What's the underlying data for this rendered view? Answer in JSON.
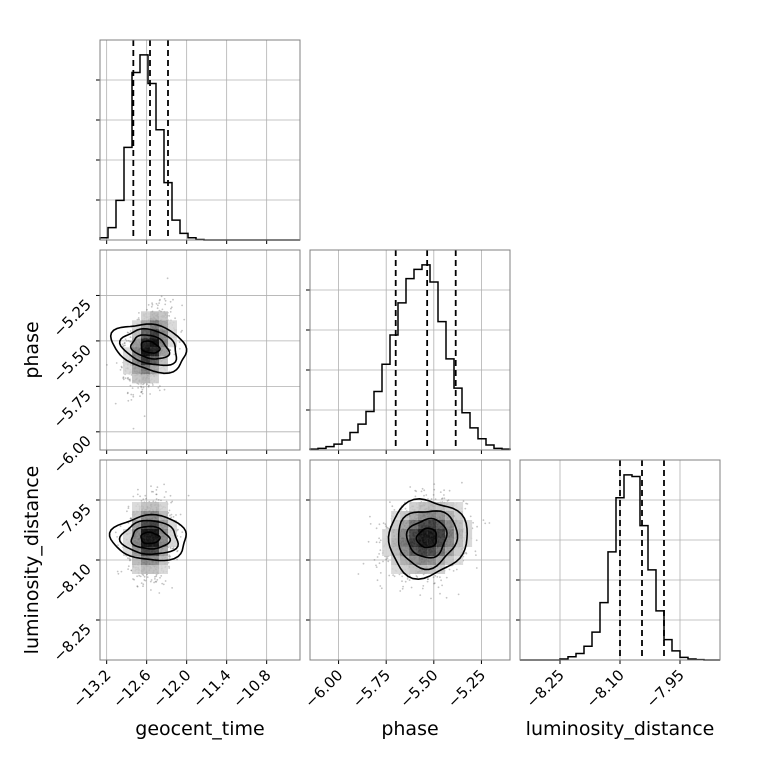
{
  "chart_data": [
    {
      "type": "histogram",
      "parameter": "geocent_time",
      "grid": true,
      "xlim": [
        -13.3,
        -10.3
      ],
      "bin_edges": [
        -13.3,
        -13.18,
        -13.06,
        -12.94,
        -12.82,
        -12.7,
        -12.58,
        -12.46,
        -12.34,
        -12.22,
        -12.1,
        -11.98,
        -11.86,
        -11.74,
        -11.62,
        -11.5,
        -11.38,
        -11.26,
        -11.14,
        -11.02,
        -10.9,
        -10.78,
        -10.66,
        -10.54,
        -10.42,
        -10.3
      ],
      "counts": [
        5,
        28,
        90,
        210,
        380,
        420,
        355,
        250,
        130,
        45,
        15,
        5,
        1,
        0,
        0,
        0,
        0,
        0,
        0,
        0,
        0,
        0,
        0,
        0,
        0
      ],
      "quantile_lines": [
        -12.8,
        -12.55,
        -12.28
      ]
    },
    {
      "type": "histogram",
      "parameter": "phase",
      "grid": true,
      "xlim": [
        -6.15,
        -5.1
      ],
      "bin_edges": [
        -6.15,
        -6.108,
        -6.066,
        -6.024,
        -5.982,
        -5.94,
        -5.898,
        -5.856,
        -5.814,
        -5.772,
        -5.73,
        -5.688,
        -5.646,
        -5.604,
        -5.562,
        -5.52,
        -5.478,
        -5.436,
        -5.394,
        -5.352,
        -5.31,
        -5.268,
        -5.226,
        -5.184,
        -5.142,
        -5.1
      ],
      "counts": [
        2,
        4,
        8,
        14,
        24,
        42,
        62,
        92,
        140,
        205,
        275,
        352,
        410,
        432,
        443,
        402,
        307,
        218,
        148,
        89,
        53,
        27,
        12,
        4,
        2
      ],
      "quantile_lines": [
        -5.7,
        -5.535,
        -5.385
      ]
    },
    {
      "type": "histogram",
      "parameter": "luminosity_distance",
      "grid": true,
      "xlim": [
        -8.35,
        -7.85
      ],
      "bin_edges": [
        -8.35,
        -8.33,
        -8.31,
        -8.29,
        -8.27,
        -8.25,
        -8.23,
        -8.21,
        -8.19,
        -8.17,
        -8.15,
        -8.13,
        -8.11,
        -8.09,
        -8.07,
        -8.05,
        -8.03,
        -8.01,
        -7.99,
        -7.97,
        -7.95,
        -7.93,
        -7.91,
        -7.89,
        -7.87,
        -7.85
      ],
      "counts": [
        0,
        0,
        0,
        0,
        0,
        3,
        10,
        20,
        42,
        85,
        175,
        330,
        495,
        565,
        560,
        410,
        275,
        150,
        62,
        28,
        8,
        3,
        1,
        0,
        0
      ],
      "quantile_lines": [
        -8.1,
        -8.045,
        -7.99
      ]
    },
    {
      "type": "scatter_density",
      "x_parameter": "geocent_time",
      "y_parameter": "phase",
      "xlim": [
        -13.3,
        -10.3
      ],
      "ylim": [
        -6.1,
        -5.0
      ],
      "center": [
        -12.55,
        -5.535
      ],
      "spread": [
        0.16,
        0.1
      ],
      "correlation": 0.35,
      "contour_levels_sigma": [
        0.5,
        1.0,
        1.5,
        2.0
      ]
    },
    {
      "type": "scatter_density",
      "x_parameter": "geocent_time",
      "y_parameter": "luminosity_distance",
      "xlim": [
        -13.3,
        -10.3
      ],
      "ylim": [
        -8.35,
        -7.85
      ],
      "center": [
        -12.55,
        -8.045
      ],
      "spread": [
        0.16,
        0.045
      ],
      "correlation": 0.05,
      "contour_levels_sigma": [
        0.5,
        1.0,
        1.5,
        2.0
      ]
    },
    {
      "type": "scatter_density",
      "x_parameter": "phase",
      "y_parameter": "luminosity_distance",
      "xlim": [
        -6.15,
        -5.1
      ],
      "ylim": [
        -8.35,
        -7.85
      ],
      "center": [
        -5.535,
        -8.045
      ],
      "spread": [
        0.1,
        0.045
      ],
      "correlation": 0.15,
      "contour_levels_sigma": [
        0.5,
        1.0,
        1.5,
        2.0
      ]
    }
  ],
  "axes": {
    "geocent_time": {
      "label": "geocent_time",
      "ticks": [
        -13.2,
        -12.6,
        -12.0,
        -11.4,
        -10.8
      ],
      "tick_labels": [
        "−13.2",
        "−12.6",
        "−12.0",
        "−11.4",
        "−10.8"
      ]
    },
    "phase": {
      "label": "phase",
      "ticks": [
        -6.0,
        -5.75,
        -5.5,
        -5.25
      ],
      "tick_labels": [
        "−6.00",
        "−5.75",
        "−5.50",
        "−5.25"
      ]
    },
    "luminosity_distance": {
      "label": "luminosity_distance",
      "x_ticks": [
        -8.25,
        -8.1,
        -7.95
      ],
      "x_tick_labels": [
        "−8.25",
        "−8.10",
        "−7.95"
      ],
      "y_ticks": [
        -8.25,
        -8.1,
        -7.95
      ],
      "y_tick_labels": [
        "−8.25",
        "−8.10",
        "−7.95"
      ]
    }
  },
  "colors": {
    "frame": "#808080",
    "grid": "#b0b0b0",
    "line": "#000000",
    "points": "#555555"
  }
}
